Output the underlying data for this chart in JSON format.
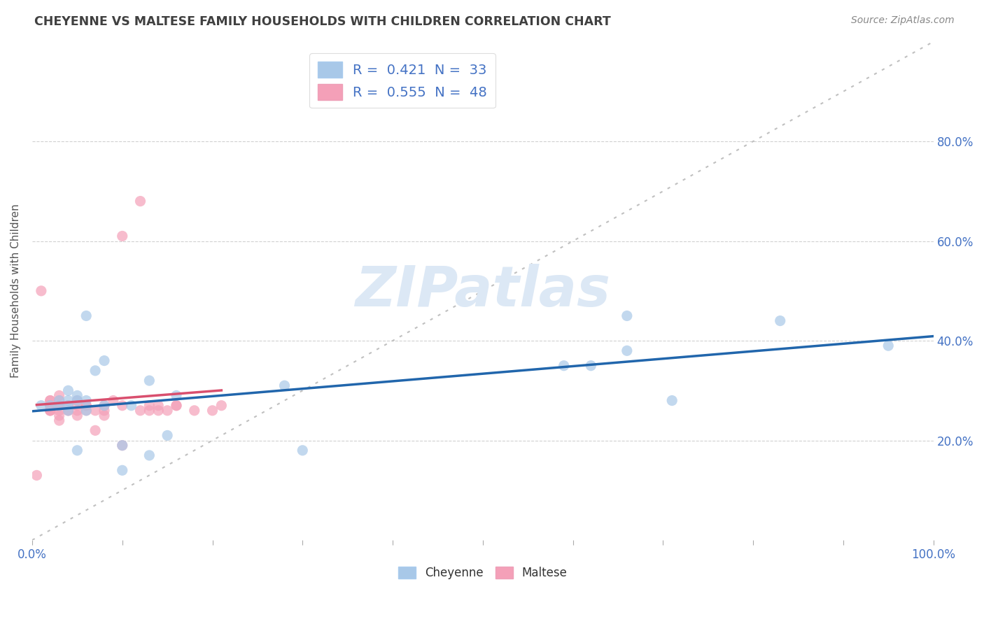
{
  "title": "CHEYENNE VS MALTESE FAMILY HOUSEHOLDS WITH CHILDREN CORRELATION CHART",
  "source": "Source: ZipAtlas.com",
  "ylabel": "Family Households with Children",
  "cheyenne_color": "#a8c8e8",
  "maltese_color": "#f4a0b8",
  "cheyenne_R": 0.421,
  "cheyenne_N": 33,
  "maltese_R": 0.555,
  "maltese_N": 48,
  "cheyenne_line_color": "#2166ac",
  "maltese_line_color": "#d94f6e",
  "identity_line_color": "#c0c0c0",
  "background_color": "#ffffff",
  "grid_color": "#cccccc",
  "watermark": "ZIPatlas",
  "title_color": "#404040",
  "axis_label_color": "#555555",
  "tick_label_color": "#4472c4",
  "legend_R_color": "#4472c4",
  "xlim": [
    0.0,
    1.0
  ],
  "ylim": [
    0.0,
    1.0
  ],
  "ytick_positions": [
    0.2,
    0.4,
    0.6,
    0.8
  ],
  "ytick_labels": [
    "20.0%",
    "40.0%",
    "60.0%",
    "80.0%"
  ],
  "xtick_positions": [
    0.0,
    0.1,
    0.2,
    0.3,
    0.4,
    0.5,
    0.6,
    0.7,
    0.8,
    0.9,
    1.0
  ],
  "cheyenne_x": [
    0.01,
    0.02,
    0.03,
    0.03,
    0.04,
    0.04,
    0.04,
    0.04,
    0.05,
    0.05,
    0.05,
    0.06,
    0.06,
    0.06,
    0.07,
    0.08,
    0.08,
    0.1,
    0.1,
    0.11,
    0.13,
    0.13,
    0.15,
    0.16,
    0.28,
    0.3,
    0.59,
    0.62,
    0.66,
    0.66,
    0.71,
    0.83,
    0.95
  ],
  "cheyenne_y": [
    0.27,
    0.27,
    0.27,
    0.28,
    0.28,
    0.27,
    0.26,
    0.3,
    0.29,
    0.28,
    0.18,
    0.28,
    0.26,
    0.45,
    0.34,
    0.36,
    0.27,
    0.14,
    0.19,
    0.27,
    0.17,
    0.32,
    0.21,
    0.29,
    0.31,
    0.18,
    0.35,
    0.35,
    0.38,
    0.45,
    0.28,
    0.44,
    0.39
  ],
  "maltese_x": [
    0.005,
    0.01,
    0.02,
    0.02,
    0.02,
    0.02,
    0.02,
    0.02,
    0.02,
    0.03,
    0.03,
    0.03,
    0.03,
    0.03,
    0.03,
    0.03,
    0.03,
    0.04,
    0.04,
    0.04,
    0.05,
    0.05,
    0.05,
    0.05,
    0.06,
    0.06,
    0.06,
    0.07,
    0.07,
    0.08,
    0.08,
    0.08,
    0.09,
    0.1,
    0.1,
    0.1,
    0.12,
    0.12,
    0.13,
    0.13,
    0.14,
    0.14,
    0.15,
    0.16,
    0.16,
    0.18,
    0.2,
    0.21
  ],
  "maltese_y": [
    0.13,
    0.5,
    0.27,
    0.28,
    0.27,
    0.26,
    0.28,
    0.26,
    0.26,
    0.29,
    0.28,
    0.27,
    0.27,
    0.27,
    0.26,
    0.25,
    0.24,
    0.27,
    0.26,
    0.26,
    0.28,
    0.27,
    0.26,
    0.25,
    0.27,
    0.26,
    0.27,
    0.22,
    0.26,
    0.27,
    0.26,
    0.25,
    0.28,
    0.61,
    0.27,
    0.19,
    0.68,
    0.26,
    0.27,
    0.26,
    0.27,
    0.26,
    0.26,
    0.27,
    0.27,
    0.26,
    0.26,
    0.27
  ]
}
